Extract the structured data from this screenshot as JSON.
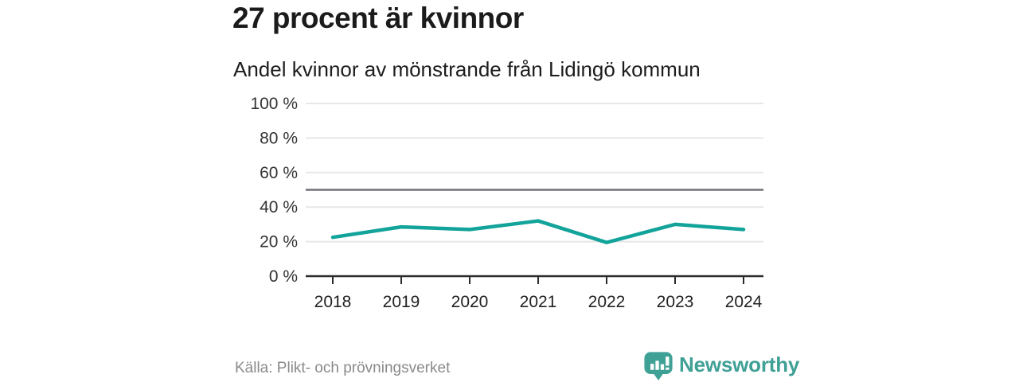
{
  "header": {
    "title": "27 procent är kvinnor",
    "subtitle": "Andel kvinnor av mönstrande från Lidingö kommun"
  },
  "chart_data": {
    "type": "line",
    "title": "27 procent är kvinnor",
    "subtitle": "Andel kvinnor av mönstrande från Lidingö kommun",
    "x": [
      "2018",
      "2019",
      "2020",
      "2021",
      "2022",
      "2023",
      "2024"
    ],
    "values": [
      22.5,
      28.5,
      27,
      32,
      19.5,
      30,
      27
    ],
    "series_note": "single unnamed series, no legend shown",
    "xlabel": "",
    "ylabel": "",
    "ylim": [
      0,
      100
    ],
    "yticks": [
      0,
      20,
      40,
      60,
      80,
      100
    ],
    "ytick_suffix": " %",
    "reference_line": 50,
    "grid": "horizontal",
    "legend": "none"
  },
  "footer": {
    "source": "Källa: Plikt- och prövningsverket",
    "brand": "Newsworthy"
  },
  "icons": {
    "logo": "newsworthy-speech-bubble-bar-chart-icon"
  },
  "colors": {
    "line": "#12a39a",
    "brand_teal": "#3fa096",
    "grid": "#e7e7e7",
    "reference_line": "#71717a",
    "axis": "#2b2b2b",
    "axis_label": "#333333",
    "title_text": "#1b1b1b",
    "muted_text": "#8a8a8a",
    "logo_glyph": "#ffffff"
  }
}
